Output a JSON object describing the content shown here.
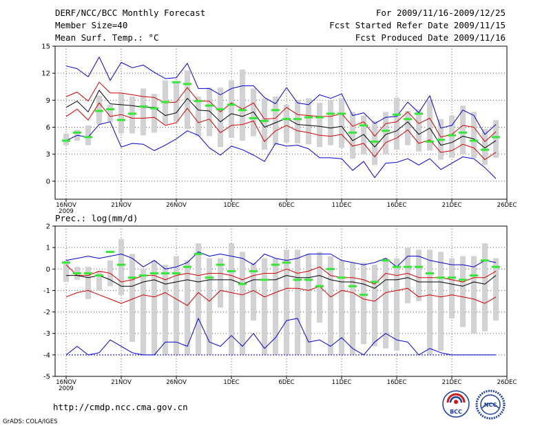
{
  "header": {
    "title": "DERF/NCC/BCC Monthly Forecast",
    "member_size": "Member Size=40",
    "variable": "Mean Surf. Temp.: °C",
    "period": "For 2009/11/16-2009/12/25",
    "started": "Fcst Started Refer Date 2009/11/15",
    "produced": "Fcst Produced Date 2009/11/16"
  },
  "footer": {
    "url": "http://cmdp.ncc.cma.gov.cn",
    "credit": "GrADS: COLA/IGES"
  },
  "logos": {
    "bcc": "BCC",
    "ncc": "NCC"
  },
  "colors": {
    "envelope": "#0000d0",
    "spread": "#d00000",
    "mean": "#000000",
    "observed": "#33e833",
    "box": "#d2d2d4",
    "grid": "#555555"
  },
  "chart_data": [
    {
      "type": "box",
      "title": "Mean Surf. Temp.: °C",
      "x_tick_labels": [
        "16NOV",
        "21NOV",
        "26NOV",
        "1DEC",
        "6DEC",
        "11DEC",
        "16DEC",
        "21DEC",
        "26DEC"
      ],
      "x_year_label": "2009",
      "y_ticks": [
        0,
        3,
        6,
        9,
        12,
        15
      ],
      "ylim": [
        -2,
        15
      ],
      "days": 40,
      "series": [
        {
          "name": "max",
          "values": [
            12.8,
            12.5,
            11.6,
            13.8,
            11.2,
            13.2,
            12.6,
            12.9,
            12.1,
            11.4,
            11.5,
            13.1,
            10.3,
            10.3,
            9.6,
            10.3,
            10.6,
            10.6,
            9.3,
            8.6,
            10.4,
            8.7,
            8.5,
            9.6,
            9.2,
            9.7,
            7.3,
            7.6,
            6.4,
            7.1,
            7.2,
            8.8,
            7.6,
            9.5,
            5.9,
            6.2,
            7.9,
            7.3,
            5.2,
            6.3
          ]
        },
        {
          "name": "upper",
          "values": [
            9.4,
            9.9,
            8.9,
            11.0,
            9.8,
            9.8,
            9.6,
            9.4,
            9.3,
            8.7,
            8.8,
            10.4,
            8.9,
            8.9,
            7.7,
            8.7,
            8.0,
            8.7,
            6.9,
            7.0,
            8.2,
            7.4,
            7.3,
            7.2,
            7.2,
            7.5,
            6.1,
            6.6,
            5.0,
            6.4,
            6.6,
            7.7,
            6.4,
            7.0,
            4.9,
            5.2,
            6.2,
            6.0,
            4.4,
            5.5
          ]
        },
        {
          "name": "mean",
          "values": [
            8.2,
            8.9,
            7.7,
            10.1,
            8.6,
            8.5,
            8.4,
            8.2,
            8.2,
            7.3,
            7.6,
            9.2,
            7.9,
            7.8,
            6.6,
            7.5,
            7.2,
            7.7,
            6.0,
            6.5,
            7.0,
            6.3,
            6.2,
            6.1,
            5.9,
            6.1,
            4.5,
            5.2,
            3.8,
            5.2,
            5.6,
            6.6,
            5.2,
            5.9,
            4.0,
            4.3,
            5.0,
            4.7,
            3.7,
            4.5
          ]
        },
        {
          "name": "lower",
          "values": [
            7.2,
            8.0,
            6.8,
            8.7,
            7.2,
            7.4,
            7.0,
            7.0,
            7.1,
            6.2,
            6.5,
            8.1,
            6.5,
            6.9,
            5.4,
            6.2,
            6.3,
            6.7,
            4.4,
            5.6,
            6.2,
            5.6,
            5.4,
            5.1,
            5.0,
            5.2,
            3.9,
            4.2,
            2.7,
            4.3,
            4.8,
            5.7,
            4.2,
            4.6,
            3.2,
            3.4,
            4.1,
            3.7,
            2.4,
            3.2
          ]
        },
        {
          "name": "min",
          "values": [
            4.5,
            5.1,
            4.9,
            6.3,
            6.6,
            3.8,
            4.2,
            4.1,
            3.4,
            4.0,
            4.7,
            5.6,
            5.1,
            3.7,
            2.9,
            3.9,
            3.5,
            2.9,
            2.2,
            4.2,
            3.9,
            4.0,
            3.6,
            2.6,
            2.6,
            2.5,
            1.2,
            2.2,
            0.4,
            2.0,
            2.1,
            2.5,
            1.8,
            2.5,
            1.3,
            2.0,
            2.7,
            2.5,
            1.5,
            0.3
          ]
        },
        {
          "name": "ens_max",
          "values": [
            5.3,
            5.7,
            6.2,
            9.5,
            8.5,
            9.8,
            9.4,
            10.3,
            9.7,
            11.2,
            11.0,
            12.3,
            9.4,
            10.4,
            10.4,
            11.2,
            12.4,
            10.3,
            9.2,
            9.4,
            8.5,
            9.0,
            9.2,
            8.7,
            9.0,
            9.2,
            7.7,
            7.3,
            6.7,
            7.7,
            9.3,
            7.8,
            8.0,
            9.0,
            6.9,
            7.3,
            8.4,
            7.7,
            5.8,
            6.8
          ]
        },
        {
          "name": "ens_min",
          "values": [
            4.0,
            4.5,
            4.0,
            6.3,
            6.6,
            5.3,
            5.3,
            5.1,
            5.4,
            6.3,
            6.6,
            5.8,
            5.0,
            5.0,
            3.8,
            4.8,
            4.5,
            5.0,
            3.5,
            4.0,
            4.3,
            4.2,
            4.1,
            3.8,
            4.0,
            3.7,
            2.5,
            3.0,
            1.8,
            3.0,
            3.5,
            4.0,
            3.3,
            3.4,
            2.4,
            2.6,
            3.0,
            2.6,
            1.8,
            2.6
          ]
        },
        {
          "name": "observed",
          "values": [
            4.5,
            5.4,
            4.9,
            7.8,
            8.0,
            6.8,
            7.5,
            8.3,
            8.1,
            8.8,
            11.0,
            10.8,
            8.9,
            8.4,
            8.0,
            8.5,
            7.9,
            7.0,
            6.7,
            7.9,
            6.9,
            6.9,
            7.1,
            7.1,
            7.5,
            7.5,
            5.4,
            6.2,
            4.4,
            5.6,
            7.4,
            6.9,
            7.5,
            4.4,
            4.6,
            5.1,
            5.4,
            4.5,
            3.5,
            4.9
          ]
        }
      ]
    },
    {
      "type": "box",
      "title": "Prec.: log(mm/d)",
      "x_tick_labels": [
        "16NOV",
        "21NOV",
        "26NOV",
        "1DEC",
        "6DEC",
        "11DEC",
        "16DEC",
        "21DEC",
        "26DEC"
      ],
      "x_year_label": "2009",
      "y_ticks": [
        -5,
        -4,
        -3,
        -2,
        -1,
        0,
        1,
        2
      ],
      "ylim": [
        -5,
        2
      ],
      "days": 40,
      "series": [
        {
          "name": "max",
          "values": [
            0.4,
            0.5,
            0.6,
            0.5,
            0.6,
            0.7,
            0.5,
            0.1,
            0.4,
            0.0,
            0.1,
            0.3,
            0.8,
            0.6,
            0.7,
            0.6,
            0.5,
            0.2,
            0.7,
            0.5,
            0.4,
            0.5,
            0.7,
            0.7,
            0.7,
            0.4,
            0.3,
            0.2,
            0.3,
            0.5,
            0.1,
            0.6,
            0.6,
            0.4,
            0.3,
            0.2,
            0.2,
            0.1,
            0.4,
            0.3
          ]
        },
        {
          "name": "upper",
          "values": [
            0.2,
            -0.3,
            -0.3,
            -0.1,
            -0.2,
            -0.6,
            -0.5,
            -0.3,
            -0.3,
            -0.5,
            -0.3,
            -0.2,
            -0.3,
            -0.2,
            -0.2,
            -0.3,
            -0.5,
            -0.3,
            -0.2,
            -0.2,
            0.0,
            -0.2,
            -0.1,
            0.1,
            -0.3,
            -0.4,
            -0.4,
            -0.5,
            -0.7,
            -0.2,
            -0.3,
            -0.2,
            -0.4,
            -0.4,
            -0.4,
            -0.5,
            -0.6,
            -0.4,
            -0.4,
            -0.1
          ]
        },
        {
          "name": "mean",
          "values": [
            -0.3,
            -0.3,
            -0.4,
            -0.3,
            -0.5,
            -0.8,
            -0.8,
            -0.6,
            -0.5,
            -0.7,
            -0.6,
            -0.5,
            -0.6,
            -0.5,
            -0.5,
            -0.5,
            -0.7,
            -0.5,
            -0.5,
            -0.5,
            -0.3,
            -0.4,
            -0.4,
            -0.3,
            -0.5,
            -0.6,
            -0.6,
            -0.7,
            -0.9,
            -0.5,
            -0.5,
            -0.4,
            -0.6,
            -0.6,
            -0.6,
            -0.7,
            -0.8,
            -0.6,
            -0.7,
            -0.3
          ]
        },
        {
          "name": "lower",
          "values": [
            -1.3,
            -1.1,
            -1.0,
            -1.2,
            -1.4,
            -1.6,
            -1.4,
            -1.2,
            -1.3,
            -1.1,
            -1.4,
            -1.7,
            -1.1,
            -1.5,
            -1.0,
            -1.1,
            -1.2,
            -1.0,
            -1.3,
            -1.1,
            -0.9,
            -0.9,
            -1.0,
            -0.8,
            -1.3,
            -1.0,
            -1.1,
            -1.4,
            -1.5,
            -1.1,
            -1.0,
            -0.9,
            -1.3,
            -1.2,
            -1.3,
            -1.2,
            -1.3,
            -1.4,
            -1.6,
            -1.3
          ]
        },
        {
          "name": "min",
          "values": [
            -4.0,
            -3.6,
            -4.0,
            -3.9,
            -3.3,
            -3.6,
            -3.9,
            -4.0,
            -4.0,
            -3.4,
            -3.4,
            -3.6,
            -2.3,
            -3.4,
            -3.6,
            -3.1,
            -3.6,
            -3.0,
            -3.7,
            -3.2,
            -2.4,
            -2.3,
            -3.4,
            -3.3,
            -3.6,
            -3.2,
            -3.7,
            -4.0,
            -3.4,
            -3.0,
            -3.3,
            -3.4,
            -4.0,
            -3.7,
            -3.9,
            -4.0,
            -4.0,
            -4.0,
            -4.0,
            -4.0
          ]
        },
        {
          "name": "ens_max",
          "values": [
            0.4,
            0.1,
            0.1,
            -0.1,
            0.4,
            1.4,
            0.7,
            0.0,
            0.4,
            0.2,
            0.6,
            0.4,
            1.2,
            0.5,
            0.5,
            1.2,
            0.8,
            0.3,
            0.5,
            0.5,
            0.9,
            0.9,
            0.7,
            0.8,
            0.6,
            0.4,
            0.3,
            0.3,
            0.2,
            0.5,
            0.5,
            1.0,
            0.9,
            0.9,
            0.8,
            0.5,
            0.6,
            0.6,
            1.2,
            0.5
          ]
        },
        {
          "name": "ens_min",
          "values": [
            -0.6,
            -0.5,
            -1.4,
            -1.0,
            -0.8,
            -1.2,
            -3.4,
            -4.0,
            -4.0,
            -4.0,
            -4.0,
            -4.0,
            -4.0,
            -4.0,
            -1.8,
            -4.0,
            -4.0,
            -2.4,
            -4.0,
            -4.0,
            -4.0,
            -4.0,
            -4.0,
            -2.5,
            -4.0,
            -4.0,
            -4.0,
            -3.5,
            -3.6,
            -3.7,
            -3.8,
            -1.6,
            -1.5,
            -4.0,
            -3.8,
            -2.3,
            -2.7,
            -3.0,
            -2.9,
            -2.4
          ]
        },
        {
          "name": "observed",
          "values": [
            0.3,
            -0.2,
            -0.2,
            -0.3,
            0.8,
            0.2,
            -0.4,
            -0.3,
            -0.2,
            -0.2,
            -0.2,
            0.1,
            0.7,
            -0.4,
            0.2,
            -0.1,
            -0.7,
            -0.1,
            -0.5,
            0.2,
            0.3,
            -0.5,
            -0.5,
            -0.8,
            0.0,
            -0.4,
            -0.8,
            -1.2,
            -0.6,
            0.4,
            0.1,
            0.1,
            0.1,
            -0.2,
            -0.4,
            -0.4,
            -0.5,
            -0.3,
            0.4,
            0.1
          ]
        }
      ]
    }
  ]
}
